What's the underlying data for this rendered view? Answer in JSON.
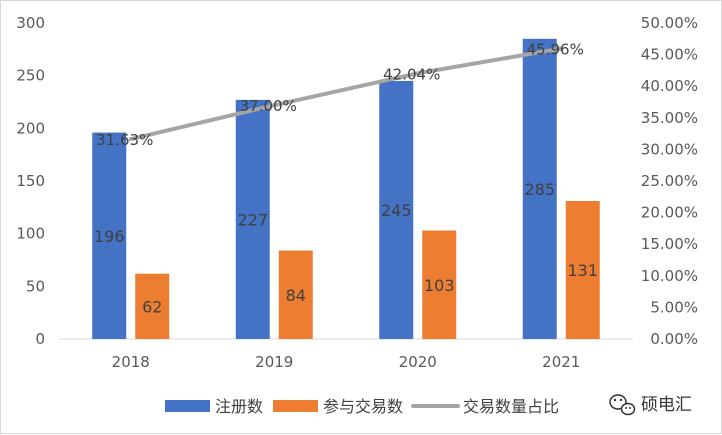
{
  "chart_data": {
    "type": "bar",
    "categories": [
      "2018",
      "2019",
      "2020",
      "2021"
    ],
    "series": [
      {
        "name": "注册数",
        "kind": "bar",
        "axis": "left",
        "color": "#4472C4",
        "values": [
          196,
          227,
          245,
          285
        ],
        "labels": [
          "196",
          "227",
          "245",
          "285"
        ]
      },
      {
        "name": "参与交易数",
        "kind": "bar",
        "axis": "left",
        "color": "#ED7D31",
        "values": [
          62,
          84,
          103,
          131
        ],
        "labels": [
          "62",
          "84",
          "103",
          "131"
        ]
      },
      {
        "name": "交易数量占比",
        "kind": "line",
        "axis": "right",
        "color": "#A5A5A5",
        "values": [
          31.63,
          37.0,
          42.04,
          45.96
        ],
        "labels": [
          "31.63%",
          "37.00%",
          "42.04%",
          "45.96%"
        ]
      }
    ],
    "ylim": [
      0,
      300
    ],
    "y_ticks": [
      "0",
      "50",
      "100",
      "150",
      "200",
      "250",
      "300"
    ],
    "y2lim": [
      0,
      50
    ],
    "y2_ticks": [
      "0.00%",
      "5.00%",
      "10.00%",
      "15.00%",
      "20.00%",
      "25.00%",
      "30.00%",
      "35.00%",
      "40.00%",
      "45.00%",
      "50.00%"
    ],
    "grid": false,
    "legend_position": "bottom"
  },
  "watermark": {
    "text": "硕电汇",
    "icon": "wechat-icon"
  }
}
